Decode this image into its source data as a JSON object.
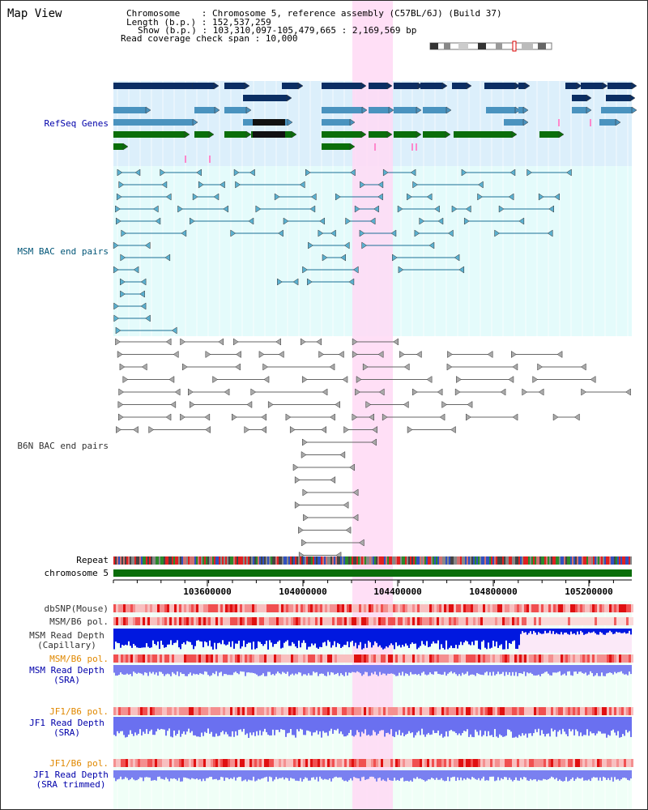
{
  "title": "Map View",
  "info": {
    "chromosome": "Chromosome    : Chromosome 5, reference assembly (C57BL/6J) (Build 37)",
    "length": "Length (b.p.) : 152,537,259",
    "show": "Show (b.p.) : 103,310,097-105,479,665 : 2,169,569 bp",
    "coverage": "Read coverage check span : 10,000"
  },
  "tracks": {
    "refseq": "RefSeq Genes",
    "msm_bac": "MSM BAC end pairs",
    "b6n_bac": "B6N BAC end pairs",
    "repeat": "Repeat",
    "chromosome": "chromosome 5",
    "dbsnp": "dbSNP(Mouse)",
    "msm_b6_pol_1": "MSM/B6 pol.",
    "msm_depth_cap": "MSM Read Depth\n(Capillary)",
    "msm_b6_pol_2": "MSM/B6 pol.",
    "msm_depth_sra": "MSM Read Depth\n(SRA)",
    "jf1_b6_pol_1": "JF1/B6 pol.",
    "jf1_depth_sra": "JF1 Read Depth\n(SRA)",
    "jf1_b6_pol_2": "JF1/B6 pol.",
    "jf1_depth_trim": "JF1 Read Depth\n(SRA trimmed)"
  },
  "axis_ticks": [
    "103600000",
    "104000000",
    "104400000",
    "104800000",
    "105200000"
  ],
  "colors": {
    "refseq_label": "#0000aa",
    "msm_label": "#005577",
    "gray_label": "#333333",
    "pol_label": "#e08800",
    "depth_label": "#0000aa",
    "highlight": "#ffd9f5",
    "refseq_bg": "#dceffb",
    "msm_bg": "#e4fbfb",
    "depth_bg": "#f0fff7",
    "chrom_bar": "#0a6e0a"
  }
}
